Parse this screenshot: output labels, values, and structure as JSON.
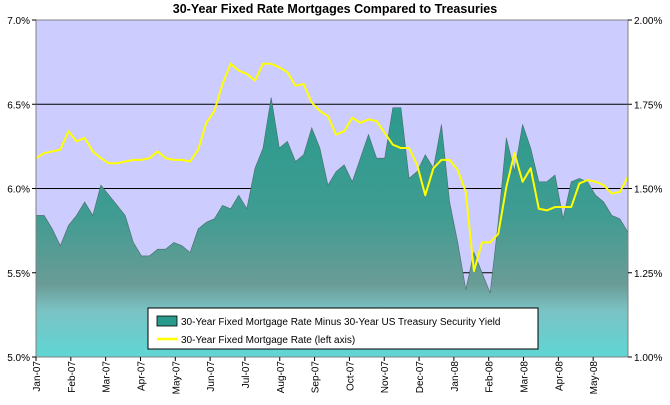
{
  "chart_data": {
    "type": "area",
    "title": "30-Year Fixed Rate Mortgages Compared to Treasuries",
    "left_axis": {
      "ticks": [
        "5.0%",
        "5.5%",
        "6.0%",
        "6.5%",
        "7.0%"
      ],
      "tick_values": [
        5.0,
        5.5,
        6.0,
        6.5,
        7.0
      ],
      "ylim": [
        5.0,
        7.0
      ]
    },
    "right_axis": {
      "ticks": [
        "1.00%",
        "1.25%",
        "1.50%",
        "1.75%",
        "2.00%"
      ],
      "tick_values": [
        1.0,
        1.25,
        1.5,
        1.75,
        2.0
      ],
      "ylim": [
        1.0,
        2.0
      ]
    },
    "x_tick_labels": [
      "Jan-07",
      "Feb-07",
      "Mar-07",
      "Apr-07",
      "May-07",
      "Jun-07",
      "Jul-07",
      "Aug-07",
      "Sep-07",
      "Oct-07",
      "Nov-07",
      "Dec-07",
      "Jan-08",
      "Feb-08",
      "Mar-08",
      "Apr-08",
      "May-08"
    ],
    "x_count": 74,
    "series": [
      {
        "name": "30-Year Fixed Mortgage Rate Minus 30-Year US Treasury Security Yield",
        "axis": "right",
        "kind": "area",
        "color": "#2a9a8c",
        "values": [
          1.42,
          1.42,
          1.38,
          1.33,
          1.39,
          1.42,
          1.46,
          1.42,
          1.51,
          1.48,
          1.45,
          1.42,
          1.34,
          1.3,
          1.3,
          1.32,
          1.32,
          1.34,
          1.33,
          1.31,
          1.38,
          1.4,
          1.41,
          1.45,
          1.44,
          1.48,
          1.44,
          1.56,
          1.62,
          1.77,
          1.62,
          1.64,
          1.58,
          1.6,
          1.68,
          1.62,
          1.51,
          1.55,
          1.57,
          1.52,
          1.59,
          1.66,
          1.59,
          1.59,
          1.74,
          1.74,
          1.53,
          1.55,
          1.6,
          1.56,
          1.69,
          1.46,
          1.34,
          1.2,
          1.31,
          1.25,
          1.19,
          1.4,
          1.65,
          1.55,
          1.69,
          1.62,
          1.52,
          1.52,
          1.54,
          1.41,
          1.52,
          1.53,
          1.52,
          1.48,
          1.46,
          1.42,
          1.41,
          1.37
        ]
      },
      {
        "name": "30-Year Fixed Mortgage Rate (left axis)",
        "axis": "left",
        "kind": "line",
        "color": "#ffff00",
        "values": [
          6.18,
          6.21,
          6.22,
          6.23,
          6.34,
          6.28,
          6.3,
          6.22,
          6.18,
          6.15,
          6.15,
          6.16,
          6.17,
          6.17,
          6.18,
          6.22,
          6.18,
          6.17,
          6.17,
          6.16,
          6.23,
          6.39,
          6.46,
          6.62,
          6.74,
          6.7,
          6.68,
          6.64,
          6.74,
          6.74,
          6.72,
          6.69,
          6.61,
          6.62,
          6.51,
          6.46,
          6.43,
          6.32,
          6.34,
          6.42,
          6.39,
          6.41,
          6.4,
          6.33,
          6.26,
          6.24,
          6.24,
          6.14,
          5.96,
          6.12,
          6.17,
          6.17,
          6.11,
          5.98,
          5.51,
          5.68,
          5.68,
          5.73,
          6.01,
          6.21,
          6.04,
          6.12,
          5.88,
          5.87,
          5.89,
          5.89,
          5.89,
          6.03,
          6.05,
          6.04,
          6.02,
          5.97,
          5.98,
          6.07
        ]
      }
    ],
    "legend_position": "bottom-center",
    "grid": true,
    "colors": {
      "plot_background": "#ccccff",
      "area_dark": "#2a9a8c",
      "area_light": "#5fd6d4",
      "line": "#ffff00",
      "gridline": "#000000"
    }
  }
}
